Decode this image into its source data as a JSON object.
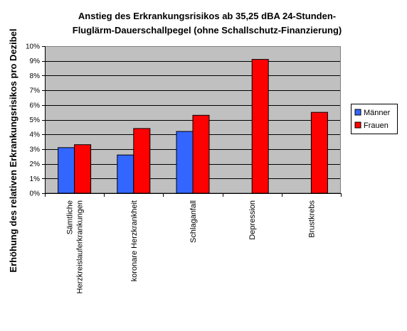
{
  "chart_data": {
    "type": "bar",
    "title_lines": [
      "Anstieg des Erkrankungsrisikos ab 35,25 dBA 24-Stunden-",
      "Fluglärm-Dauerschallpegel (ohne Schallschutz-Finanzierung)"
    ],
    "ylabel": "Erhöhung des relativen Erkrankungsrisikos pro Dezibel",
    "xlabel": "",
    "ylim": [
      0,
      10
    ],
    "yticks": [
      0,
      1,
      2,
      3,
      4,
      5,
      6,
      7,
      8,
      9,
      10
    ],
    "ytick_labels": [
      "0%",
      "1%",
      "2%",
      "3%",
      "4%",
      "5%",
      "6%",
      "7%",
      "8%",
      "9%",
      "10%"
    ],
    "categories": [
      [
        "Sämtliche",
        "Herzkreislauferkrankungen"
      ],
      [
        "koronare Herzkrankheit"
      ],
      [
        "Schlaganfall"
      ],
      [
        "Depression"
      ],
      [
        "Brustkrebs"
      ]
    ],
    "series": [
      {
        "name": "Männer",
        "color": "#3366ff",
        "values": [
          3.1,
          2.6,
          4.2,
          null,
          null
        ]
      },
      {
        "name": "Frauen",
        "color": "#ff0000",
        "values": [
          3.3,
          4.4,
          5.3,
          9.1,
          5.5
        ]
      }
    ],
    "grid": true,
    "plot_background": "#c0c0c0",
    "legend_position": "right"
  }
}
